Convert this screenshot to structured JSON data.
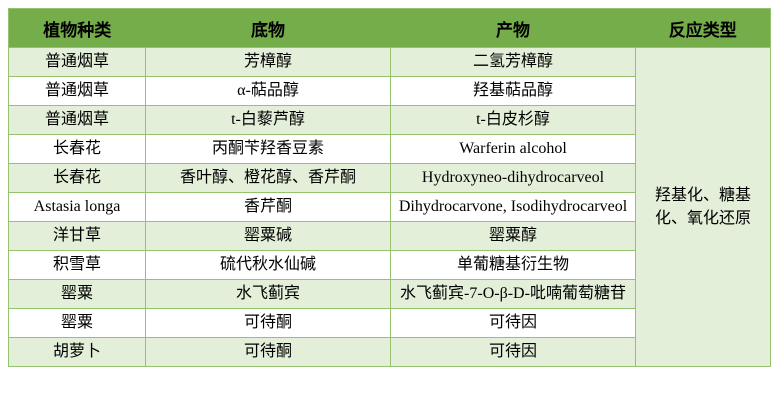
{
  "table": {
    "headers": [
      "植物种类",
      "底物",
      "产物",
      "反应类型"
    ],
    "rows": [
      {
        "plant": "普通烟草",
        "substrate": "芳樟醇",
        "product": "二氢芳樟醇"
      },
      {
        "plant": "普通烟草",
        "substrate": "α-萜品醇",
        "product": "羟基萜品醇"
      },
      {
        "plant": "普通烟草",
        "substrate": "t-白藜芦醇",
        "product": "t-白皮杉醇"
      },
      {
        "plant": "长春花",
        "substrate": "丙酮苄羟香豆素",
        "product": "Warferin alcohol"
      },
      {
        "plant": "长春花",
        "substrate": "香叶醇、橙花醇、香芹酮",
        "product": "Hydroxyneo-dihydrocarveol"
      },
      {
        "plant": "Astasia longa",
        "substrate": "香芹酮",
        "product": "Dihydrocarvone, Isodihydrocarveol"
      },
      {
        "plant": "洋甘草",
        "substrate": "罂粟碱",
        "product": "罂粟醇"
      },
      {
        "plant": "积雪草",
        "substrate": "硫代秋水仙碱",
        "product": "单葡糖基衍生物"
      },
      {
        "plant": "罂粟",
        "substrate": "水飞蓟宾",
        "product": "水飞蓟宾-7-O-β-D-吡喃葡萄糖苷"
      },
      {
        "plant": "罂粟",
        "substrate": "可待酮",
        "product": "可待因"
      },
      {
        "plant": "胡萝卜",
        "substrate": "可待酮",
        "product": "可待因"
      }
    ],
    "reaction_type": "羟基化、糖基化、氧化还原"
  },
  "colors": {
    "header_bg": "#76AD4B",
    "stripe_bg": "#E3EFD9",
    "border": "#94C26F"
  }
}
